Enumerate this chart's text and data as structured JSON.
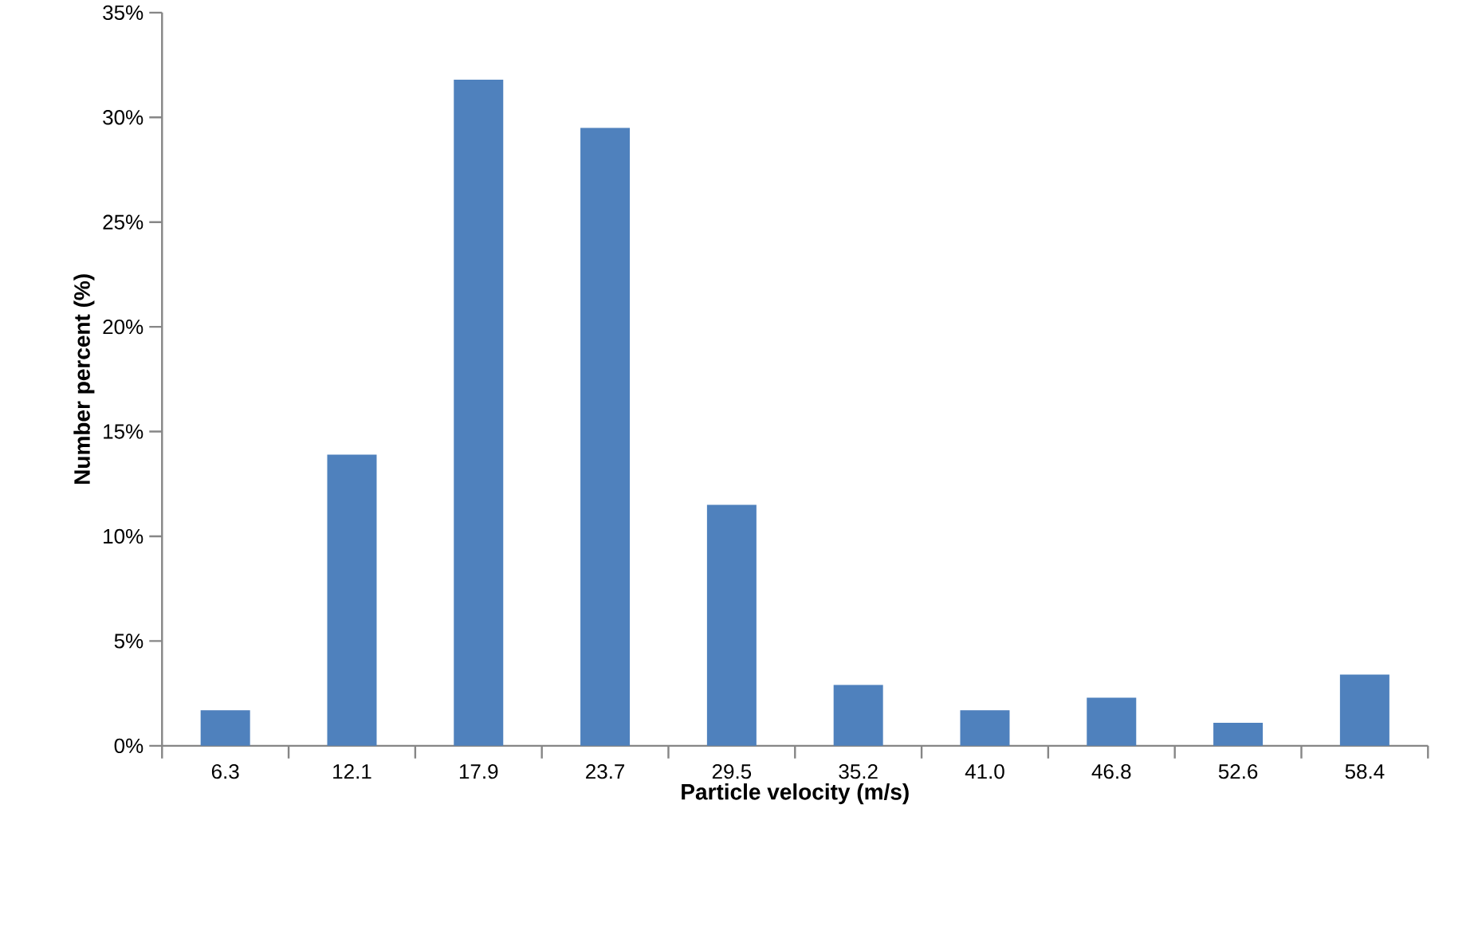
{
  "chart_data": {
    "type": "bar",
    "xlabel": "Particle velocity (m/s)",
    "ylabel": "Number percent (%)",
    "categories": [
      "6.3",
      "12.1",
      "17.9",
      "23.7",
      "29.5",
      "35.2",
      "41.0",
      "46.8",
      "52.6",
      "58.4"
    ],
    "values": [
      1.7,
      13.9,
      31.8,
      29.5,
      11.5,
      2.9,
      1.7,
      2.3,
      1.1,
      3.4
    ],
    "color": "#4f81bd",
    "ylim": [
      0,
      35
    ],
    "yticks": [
      {
        "value": 0,
        "label": "0%"
      },
      {
        "value": 5,
        "label": "5%"
      },
      {
        "value": 10,
        "label": "10%"
      },
      {
        "value": 15,
        "label": "15%"
      },
      {
        "value": 20,
        "label": "20%"
      },
      {
        "value": 25,
        "label": "25%"
      },
      {
        "value": 30,
        "label": "30%"
      },
      {
        "value": 35,
        "label": "35%"
      }
    ],
    "grid": false
  }
}
